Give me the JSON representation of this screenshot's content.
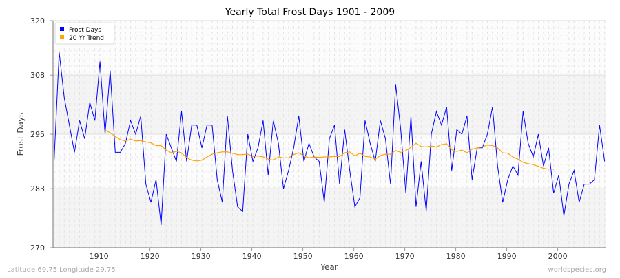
{
  "chart_data": {
    "type": "line",
    "title": "Yearly Total Frost Days 1901 - 2009",
    "xlabel": "Year",
    "ylabel": "Frost Days",
    "xlim": [
      1901,
      2009
    ],
    "ylim": [
      270,
      320
    ],
    "yticks": [
      270,
      283,
      295,
      308,
      320
    ],
    "xticks": [
      1910,
      1920,
      1930,
      1940,
      1950,
      1960,
      1970,
      1980,
      1990,
      2000
    ],
    "grid": true,
    "legend_position": "top-left",
    "series": [
      {
        "name": "Frost Days",
        "color": "#0000ff",
        "start_year": 1901,
        "values": [
          289,
          313,
          303,
          297,
          291,
          298,
          294,
          302,
          298,
          311,
          295,
          309,
          291,
          291,
          293,
          298,
          295,
          299,
          284,
          280,
          285,
          275,
          295,
          292,
          289,
          300,
          289,
          297,
          297,
          292,
          297,
          297,
          285,
          280,
          299,
          287,
          279,
          278,
          295,
          289,
          292,
          298,
          286,
          298,
          293,
          283,
          287,
          292,
          299,
          289,
          293,
          290,
          289,
          280,
          294,
          297,
          284,
          296,
          287,
          279,
          281,
          298,
          293,
          289,
          298,
          294,
          284,
          306,
          296,
          282,
          299,
          279,
          289,
          278,
          295,
          300,
          297,
          301,
          287,
          296,
          295,
          299,
          285,
          292,
          292,
          295,
          301,
          288,
          280,
          285,
          288,
          286,
          300,
          293,
          290,
          295,
          288,
          292,
          282,
          286,
          277,
          284,
          287,
          280,
          284,
          284,
          285,
          297,
          289
        ]
      },
      {
        "name": "20 Yr Trend",
        "color": "#ffa500",
        "start_year": 1911,
        "values": [
          295.9,
          295.3,
          294.5,
          293.8,
          293.5,
          293.9,
          293.5,
          293.6,
          293.3,
          293.1,
          292.5,
          292.5,
          291.5,
          290.9,
          291.2,
          290.9,
          289.8,
          289.3,
          289.1,
          289.3,
          290.0,
          290.6,
          290.9,
          291.1,
          291.1,
          290.8,
          290.5,
          290.5,
          290.6,
          290.1,
          290.2,
          290.0,
          289.5,
          289.3,
          290.0,
          289.8,
          289.8,
          290.5,
          290.9,
          290.2,
          289.8,
          290.0,
          289.9,
          290.0,
          290.0,
          290.1,
          290.1,
          290.9,
          291.1,
          290.2,
          290.8,
          290.1,
          290.0,
          289.5,
          290.3,
          290.6,
          290.6,
          291.4,
          291.0,
          291.4,
          292.1,
          293.0,
          292.3,
          292.2,
          292.4,
          292.2,
          292.7,
          292.9,
          291.6,
          291.2,
          291.5,
          290.9,
          291.7,
          292.0,
          292.2,
          292.6,
          292.5,
          292.0,
          290.9,
          290.8,
          290.0,
          289.5,
          288.8,
          288.5,
          288.3,
          287.9,
          287.5,
          287.3,
          287.3
        ]
      }
    ]
  },
  "footer": {
    "location": "Latitude 69.75 Longitude 29.75",
    "source": "worldspecies.org"
  }
}
